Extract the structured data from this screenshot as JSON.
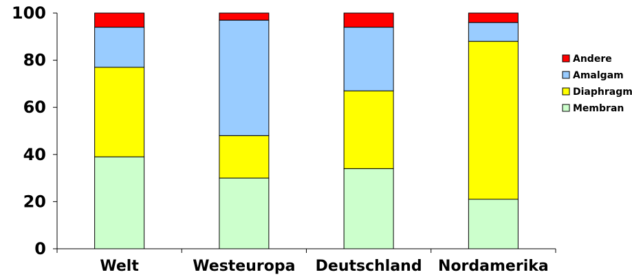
{
  "chart_data": {
    "type": "bar",
    "stacked": true,
    "title": "",
    "xlabel": "",
    "ylabel": "",
    "ylim": [
      0,
      100
    ],
    "yticks": [
      0,
      20,
      40,
      60,
      80,
      100
    ],
    "grid": false,
    "legend_position": "right",
    "categories": [
      "Welt",
      "Westeuropa",
      "Deutschland",
      "Nordamerika"
    ],
    "series": [
      {
        "name": "Membran",
        "color": "#ccffcc",
        "values": [
          39,
          30,
          34,
          21
        ]
      },
      {
        "name": "Diaphragma",
        "color": "#ffff00",
        "values": [
          38,
          18,
          33,
          67
        ]
      },
      {
        "name": "Amalgam",
        "color": "#99ccff",
        "values": [
          17,
          49,
          27,
          8
        ]
      },
      {
        "name": "Andere",
        "color": "#ff0000",
        "values": [
          6,
          3,
          6,
          4
        ]
      }
    ],
    "legend_order": [
      "Andere",
      "Amalgam",
      "Diaphragma",
      "Membran"
    ]
  }
}
